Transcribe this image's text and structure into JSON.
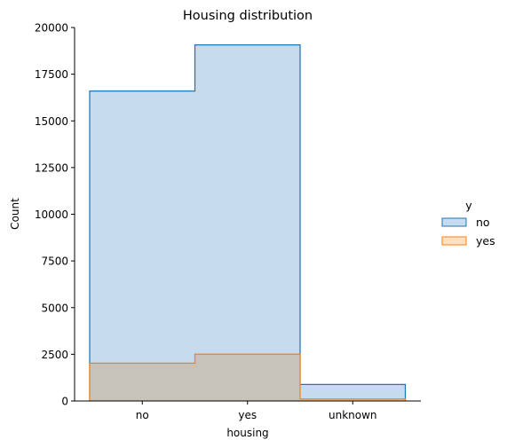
{
  "chart_data": {
    "type": "histogram",
    "title": "Housing distribution",
    "xlabel": "housing",
    "ylabel": "Count",
    "categories": [
      "no",
      "yes",
      "unknown"
    ],
    "ylim": [
      0,
      20000
    ],
    "yticks": [
      0,
      2500,
      5000,
      7500,
      10000,
      12500,
      15000,
      17500,
      20000
    ],
    "grid": false,
    "legend": {
      "title": "y",
      "placement": "right",
      "entries": [
        "no",
        "yes"
      ]
    },
    "series": [
      {
        "name": "no",
        "values": [
          16596,
          19069,
          883
        ],
        "color": "#1f77b4",
        "fill": "#c6dbed"
      },
      {
        "name": "yes",
        "values": [
          2026,
          2507,
          107
        ],
        "color": "#ff7f0e",
        "fill": "#c7c3ba"
      }
    ],
    "legend_fill_colors": {
      "no": "#c6dbed",
      "yes": "#ffe0c2"
    }
  }
}
